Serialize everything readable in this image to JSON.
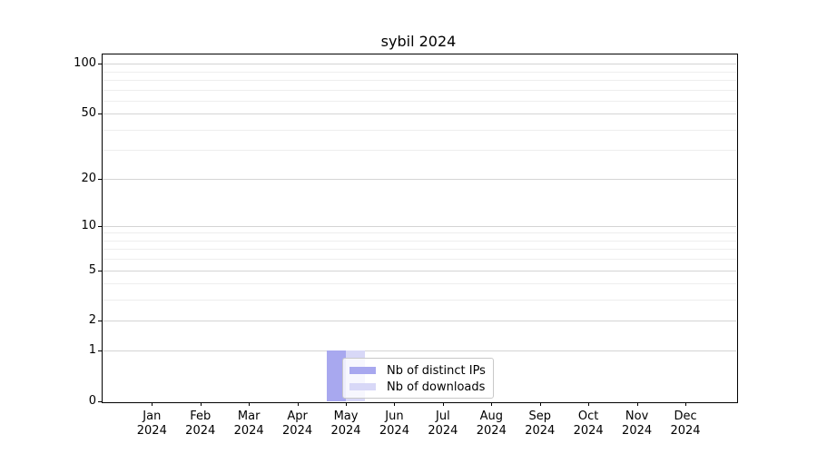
{
  "chart_data": {
    "type": "bar",
    "title": "sybil 2024",
    "categories": [
      "Jan 2024",
      "Feb 2024",
      "Mar 2024",
      "Apr 2024",
      "May 2024",
      "Jun 2024",
      "Jul 2024",
      "Aug 2024",
      "Sep 2024",
      "Oct 2024",
      "Nov 2024",
      "Dec 2024"
    ],
    "series": [
      {
        "name": "Nb of distinct IPs",
        "color": "#a8a8ef",
        "values": [
          0,
          0,
          0,
          0,
          1,
          0,
          0,
          0,
          0,
          0,
          0,
          0
        ]
      },
      {
        "name": "Nb of downloads",
        "color": "#d8d8f7",
        "values": [
          0,
          0,
          0,
          0,
          1,
          0,
          0,
          0,
          0,
          0,
          0,
          0
        ]
      }
    ],
    "xlabel": "",
    "ylabel": "",
    "yscale": "symlog-log10(1+x)",
    "ylim": [
      0,
      115
    ],
    "yticks": [
      0,
      1,
      2,
      5,
      10,
      20,
      50,
      100
    ],
    "minor_gridline_values": [
      3,
      4,
      6,
      7,
      8,
      9,
      30,
      40,
      60,
      70,
      80,
      90
    ],
    "grid": "horizontal",
    "legend": {
      "position": "inside-bottom-left-of-center",
      "entries": [
        "Nb of distinct IPs",
        "Nb of downloads"
      ]
    },
    "colors": {
      "background": "#ffffff",
      "major_grid": "#d4d4d4",
      "minor_grid": "#eeeeee",
      "spine": "#000000",
      "text": "#000000",
      "legend_border": "#c8c8c8"
    }
  }
}
